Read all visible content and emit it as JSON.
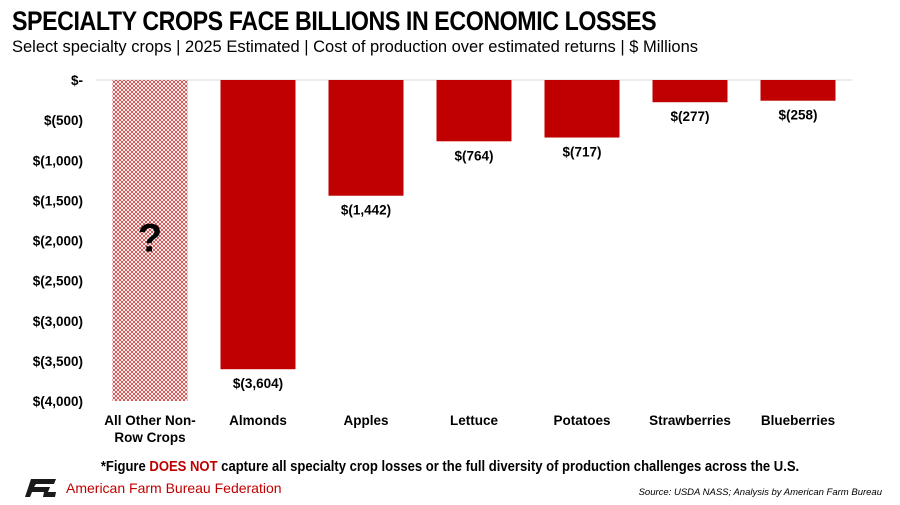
{
  "header": {
    "title": "SPECIALTY CROPS FACE BILLIONS IN ECONOMIC LOSSES",
    "subtitle": "Select specialty crops | 2025 Estimated | Cost of production over estimated returns | $ Millions"
  },
  "chart_data": {
    "type": "bar",
    "title": "SPECIALTY CROPS FACE BILLIONS IN ECONOMIC LOSSES",
    "subtitle": "Select specialty crops | 2025 Estimated | Cost of production over estimated returns | $ Millions",
    "categories": [
      "All Other Non-Row Crops",
      "Almonds",
      "Apples",
      "Lettuce",
      "Potatoes",
      "Strawberries",
      "Blueberries"
    ],
    "category_labels": [
      [
        "All Other Non-",
        "Row Crops"
      ],
      [
        "Almonds"
      ],
      [
        "Apples"
      ],
      [
        "Lettuce"
      ],
      [
        "Potatoes"
      ],
      [
        "Strawberries"
      ],
      [
        "Blueberries"
      ]
    ],
    "values": [
      null,
      -3604,
      -1442,
      -764,
      -717,
      -277,
      -258
    ],
    "data_labels": [
      "?",
      "$(3,604)",
      "$(1,442)",
      "$(764)",
      "$(717)",
      "$(277)",
      "$(258)"
    ],
    "unknown_category_note": "?",
    "ylim": [
      -4000,
      0
    ],
    "yticks": [
      0,
      -500,
      -1000,
      -1500,
      -2000,
      -2500,
      -3000,
      -3500,
      -4000
    ],
    "ytick_labels": [
      "$-",
      "$(500)",
      "$(1,000)",
      "$(1,500)",
      "$(2,000)",
      "$(2,500)",
      "$(3,000)",
      "$(3,500)",
      "$(4,000)"
    ],
    "xlabel": "",
    "ylabel": "",
    "grid": false,
    "colors": {
      "bar": "#c00000",
      "hatch": "#c00000",
      "axis": "#d9d9d9"
    }
  },
  "footer": {
    "note_prefix": "*Figure ",
    "note_emphasis": "DOES NOT",
    "note_suffix": " capture all specialty crop losses or the full diversity of production challenges across the U.S.",
    "org_name": "American Farm Bureau Federation",
    "org_mark_text": "FB",
    "source": "Source: USDA NASS; Analysis by American Farm Bureau"
  }
}
